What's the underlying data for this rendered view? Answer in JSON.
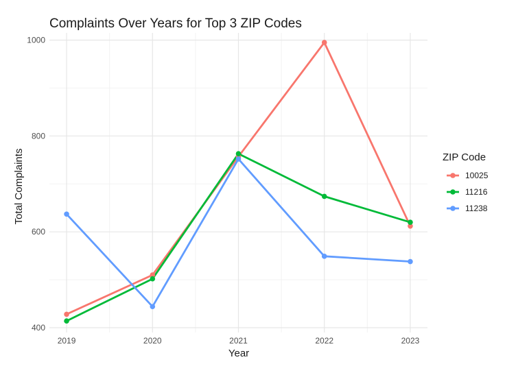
{
  "chart_data": {
    "type": "line",
    "title": "Complaints Over Years for Top 3 ZIP Codes",
    "xlabel": "Year",
    "ylabel": "Total Complaints",
    "x": [
      2019,
      2020,
      2021,
      2022,
      2023
    ],
    "x_tick_labels": [
      "2019",
      "2020",
      "2021",
      "2022",
      "2023"
    ],
    "ylim": [
      390,
      1015
    ],
    "y_ticks": [
      400,
      600,
      800,
      1000
    ],
    "y_tick_labels": [
      "400",
      "600",
      "800",
      "1000"
    ],
    "grid": true,
    "legend_position": "right",
    "legend_title": "ZIP Code",
    "series": [
      {
        "name": "10025",
        "color": "#F8766D",
        "values": [
          428,
          510,
          757,
          995,
          612
        ]
      },
      {
        "name": "11216",
        "color": "#00BA38",
        "values": [
          414,
          502,
          763,
          674,
          620
        ]
      },
      {
        "name": "11238",
        "color": "#619CFF",
        "values": [
          637,
          444,
          752,
          549,
          538
        ]
      }
    ]
  }
}
